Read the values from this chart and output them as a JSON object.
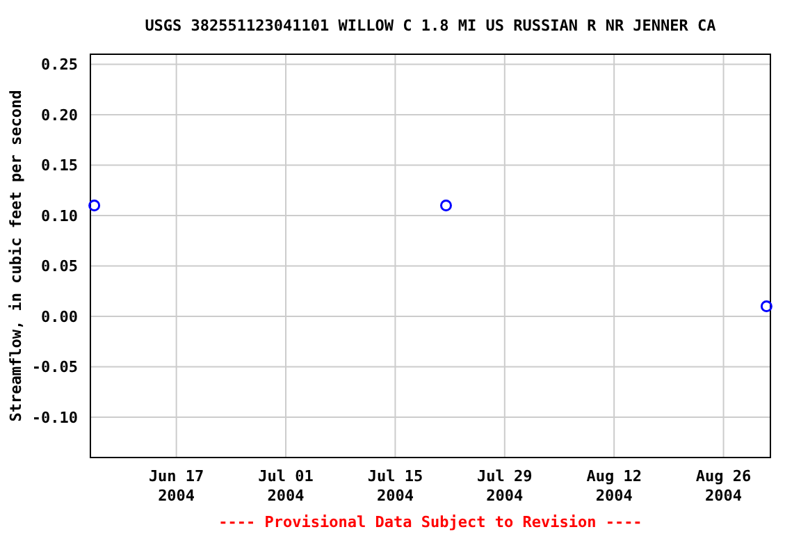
{
  "chart_data": {
    "type": "scatter",
    "title": "USGS 382551123041101 WILLOW C 1.8 MI US RUSSIAN R NR JENNER CA",
    "ylabel": "Streamflow, in cubic feet per second",
    "x": [
      "2004-06-06T12:00",
      "2004-07-21T12:00",
      "2004-08-31T12:00"
    ],
    "series": [
      {
        "color": "#0000ff",
        "values": [
          0.11,
          0.11,
          0.01
        ]
      }
    ],
    "marker": "circle",
    "xlim": [
      "2004-06-06",
      "2004-09-01"
    ],
    "xticks": [
      {
        "value": "2004-06-17",
        "label": "Jun 17\n2004"
      },
      {
        "value": "2004-07-01",
        "label": "Jul 01\n2004"
      },
      {
        "value": "2004-07-15",
        "label": "Jul 15\n2004"
      },
      {
        "value": "2004-07-29",
        "label": "Jul 29\n2004"
      },
      {
        "value": "2004-08-12",
        "label": "Aug 12\n2004"
      },
      {
        "value": "2004-08-26",
        "label": "Aug 26\n2004"
      }
    ],
    "ylim": [
      -0.14,
      0.26
    ],
    "yticks": [
      {
        "value": -0.1,
        "label": "-0.10"
      },
      {
        "value": -0.05,
        "label": "-0.05"
      },
      {
        "value": 0,
        "label": "0.00"
      },
      {
        "value": 0.05,
        "label": "0.05"
      },
      {
        "value": 0.1,
        "label": "0.10"
      },
      {
        "value": 0.15,
        "label": "0.15"
      },
      {
        "value": 0.2,
        "label": "0.20"
      },
      {
        "value": 0.25,
        "label": "0.25"
      }
    ],
    "grid": true,
    "annotations": [
      "---- Provisional Data Subject to Revision ----"
    ]
  }
}
